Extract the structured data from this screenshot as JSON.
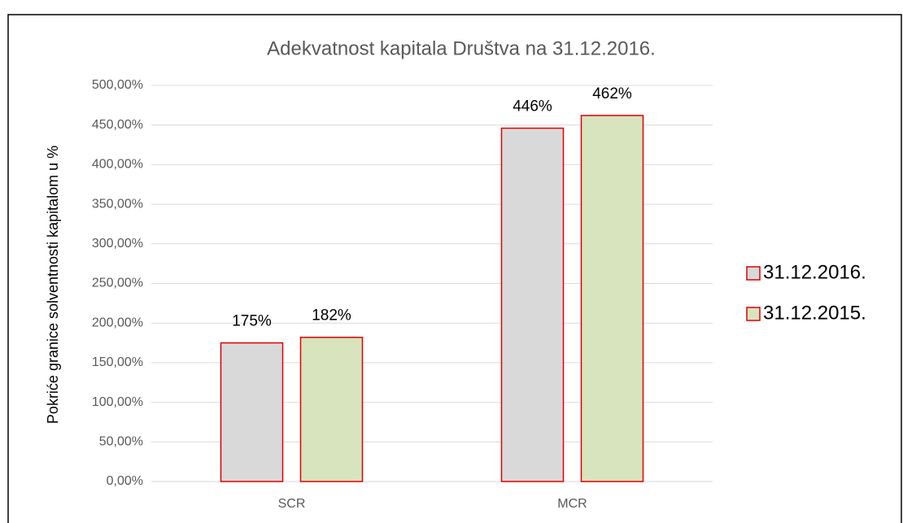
{
  "chart_data": {
    "type": "bar",
    "title": "Adekvatnost kapitala Društva na 31.12.2016.",
    "y_label": "Pokriće granice solventnosti kapitalom u %",
    "categories": [
      "SCR",
      "MCR"
    ],
    "series": [
      {
        "name": "31.12.2016.",
        "color": "#d9d9d9",
        "values": [
          175,
          446
        ],
        "value_labels": [
          "175%",
          "446%"
        ]
      },
      {
        "name": "31.12.2015.",
        "color": "#d7e4bd",
        "values": [
          182,
          462
        ],
        "value_labels": [
          "182%",
          "462%"
        ]
      }
    ],
    "bar_edge_color": "#e00000",
    "ylim": [
      0,
      500
    ],
    "yticks": [
      {
        "value": 0,
        "label": "0,00%"
      },
      {
        "value": 50,
        "label": "50,00%"
      },
      {
        "value": 100,
        "label": "100,00%"
      },
      {
        "value": 150,
        "label": "150,00%"
      },
      {
        "value": 200,
        "label": "200,00%"
      },
      {
        "value": 250,
        "label": "250,00%"
      },
      {
        "value": 300,
        "label": "300,00%"
      },
      {
        "value": 350,
        "label": "350,00%"
      },
      {
        "value": 400,
        "label": "400,00%"
      },
      {
        "value": 450,
        "label": "450,00%"
      },
      {
        "value": 500,
        "label": "500,00%"
      }
    ],
    "grid": true,
    "legend": "right"
  }
}
